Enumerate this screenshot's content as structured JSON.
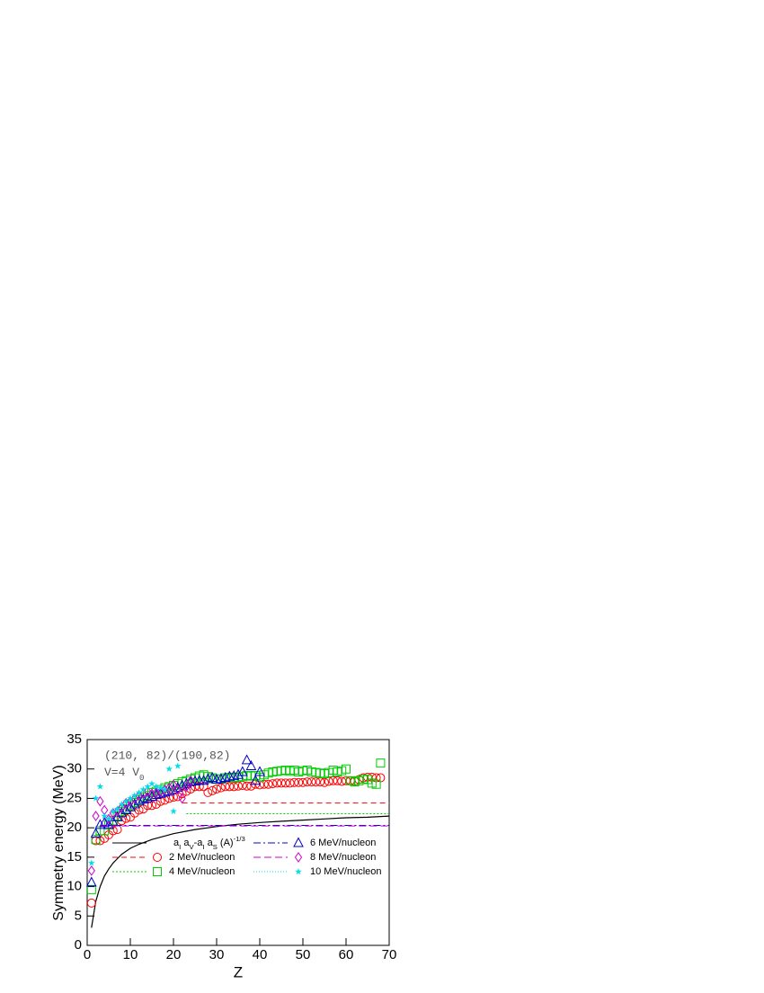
{
  "chart_data": {
    "type": "scatter",
    "xlabel": "Z",
    "ylabel": "Symmetry energy (MeV)",
    "annotations": [
      "(210, 82)/(190,82)",
      "V=4 V_{0}"
    ],
    "xlim": [
      0,
      70
    ],
    "xticks": [
      0,
      10,
      20,
      30,
      40,
      50,
      60,
      70
    ],
    "ylim": [
      0,
      35
    ],
    "yticks": [
      0,
      5,
      10,
      15,
      20,
      25,
      30,
      35
    ],
    "series": [
      {
        "name": "a_{I} a_{V}-a_{I} a_{S} (A)^{-1/3}",
        "color": "#000000",
        "marker": "none",
        "dash": "none",
        "x": [
          1,
          2,
          3,
          4,
          5,
          6,
          8,
          10,
          12,
          15,
          20,
          25,
          30,
          35,
          40,
          45,
          50,
          55,
          60,
          65,
          70
        ],
        "values": [
          3,
          7.5,
          10,
          11.8,
          13,
          14,
          15.5,
          16.5,
          17.2,
          18,
          19,
          19.7,
          20.2,
          20.6,
          20.9,
          21.1,
          21.3,
          21.5,
          21.7,
          21.8,
          22
        ]
      },
      {
        "name": "2 MeV/nucleon",
        "color": "#ff0000",
        "marker": "circle",
        "dash": "6,4",
        "level": 24.2,
        "level_from": 22,
        "x": [
          1,
          2,
          3,
          4,
          5,
          6,
          7,
          8,
          9,
          10,
          11,
          12,
          13,
          14,
          15,
          16,
          17,
          18,
          19,
          20,
          21,
          22,
          23,
          24,
          25,
          26,
          27,
          28,
          29,
          30,
          31,
          32,
          33,
          34,
          35,
          36,
          37,
          38,
          39,
          40,
          41,
          42,
          43,
          44,
          45,
          46,
          47,
          48,
          49,
          50,
          51,
          52,
          53,
          54,
          55,
          56,
          57,
          58,
          59,
          60,
          61,
          62,
          63,
          64,
          65,
          66,
          67,
          68
        ],
        "values": [
          7.2,
          17.8,
          17.8,
          18.2,
          18.8,
          19.5,
          19.7,
          21.2,
          21.6,
          21.8,
          22.5,
          23,
          23.2,
          23.8,
          23.8,
          24,
          24.5,
          24.7,
          25,
          25.2,
          25.3,
          25.8,
          26.2,
          26.6,
          27,
          27,
          27,
          26,
          26.3,
          26.6,
          26.8,
          27,
          27,
          27,
          27.1,
          27.2,
          27.1,
          27.1,
          27.4,
          27.3,
          27.4,
          27.4,
          27.5,
          27.6,
          27.6,
          27.6,
          27.6,
          27.7,
          27.7,
          27.7,
          27.8,
          27.8,
          27.8,
          27.8,
          27.7,
          27.9,
          28,
          28,
          27.9,
          28,
          28,
          27.9,
          28.2,
          28.5,
          28.6,
          28.6,
          28.5,
          28.5
        ]
      },
      {
        "name": "4 MeV/nucleon",
        "color": "#00cc00",
        "marker": "square",
        "dash": "2,2",
        "level": 22.4,
        "level_from": 23,
        "x": [
          1,
          2,
          3,
          4,
          5,
          6,
          7,
          8,
          9,
          10,
          11,
          12,
          13,
          14,
          15,
          16,
          17,
          18,
          19,
          20,
          21,
          22,
          23,
          24,
          25,
          26,
          27,
          28,
          29,
          30,
          31,
          32,
          33,
          34,
          35,
          36,
          37,
          38,
          39,
          40,
          41,
          42,
          43,
          44,
          45,
          46,
          47,
          48,
          49,
          50,
          51,
          52,
          53,
          54,
          55,
          56,
          57,
          58,
          59,
          60,
          61,
          62,
          63,
          64,
          65,
          66,
          67,
          68
        ],
        "values": [
          9.5,
          18,
          19.5,
          19.5,
          20.5,
          21.2,
          22,
          22.8,
          23.2,
          23.8,
          24.3,
          24.8,
          25.2,
          25.5,
          26,
          26.2,
          26.5,
          26.8,
          27,
          27.2,
          27.5,
          27.8,
          28,
          28.3,
          28.5,
          28.8,
          29,
          28.7,
          28.5,
          28.3,
          28.3,
          28.5,
          28.6,
          28.5,
          28.6,
          28.7,
          28.9,
          28.8,
          28.9,
          28.6,
          29,
          29.3,
          29.5,
          29.6,
          29.7,
          29.8,
          29.6,
          29.8,
          29.5,
          29.7,
          29.8,
          29.5,
          29.4,
          29.3,
          29.2,
          29.4,
          29.8,
          29.5,
          29.7,
          30,
          28,
          27.8,
          28,
          28.3,
          28.2,
          27.6,
          27.4,
          31
        ]
      },
      {
        "name": "6 MeV/nucleon",
        "color": "#0000cc",
        "marker": "triangle",
        "dash": "8,3,2,3",
        "level": 20.4,
        "level_from": 3,
        "x": [
          1,
          2,
          3,
          4,
          5,
          6,
          7,
          8,
          9,
          10,
          11,
          12,
          13,
          14,
          15,
          16,
          17,
          18,
          19,
          20,
          21,
          22,
          23,
          24,
          25,
          26,
          27,
          28,
          29,
          30,
          31,
          32,
          33,
          34,
          35,
          36,
          37,
          38,
          39,
          40
        ],
        "values": [
          10.7,
          19,
          20.5,
          20.8,
          20.5,
          21,
          21.8,
          22.5,
          23,
          23.5,
          24,
          24.5,
          24.8,
          25,
          25.3,
          25.6,
          25.8,
          26,
          26.2,
          26.5,
          26.8,
          27.2,
          27.5,
          27.8,
          27.9,
          28,
          28,
          28.3,
          28.5,
          28.2,
          28.3,
          28.5,
          28.7,
          28.8,
          29,
          29.5,
          31.5,
          30.5,
          28,
          29.5
        ]
      },
      {
        "name": "8 MeV/nucleon",
        "color": "#cc00cc",
        "marker": "diamond",
        "dash": "8,4",
        "level": 20.3,
        "level_from": 3,
        "x": [
          1,
          2,
          3,
          4,
          5,
          6,
          7,
          8,
          9,
          10,
          11,
          12,
          13,
          14,
          15,
          16,
          17,
          18,
          19,
          20,
          21,
          22,
          23,
          24
        ],
        "values": [
          12.7,
          22,
          24.5,
          23,
          21.5,
          22.5,
          22.8,
          23.5,
          24.2,
          24.5,
          25,
          25.5,
          25.8,
          26.2,
          25.8,
          26,
          26.2,
          26.5,
          26.8,
          27.3,
          26.5,
          25,
          27,
          28
        ]
      },
      {
        "name": "10 MeV/nucleon",
        "color": "#00dde8",
        "marker": "star",
        "dash": "1,2",
        "x": [
          1,
          2,
          3,
          4,
          5,
          6,
          7,
          8,
          9,
          10,
          11,
          12,
          13,
          14,
          15,
          16,
          17,
          18,
          19,
          20,
          21
        ],
        "values": [
          14,
          25,
          27,
          22,
          21.5,
          22.8,
          23.2,
          24,
          24.5,
          25,
          25.5,
          26,
          26.5,
          27,
          27.5,
          27,
          26.8,
          26.5,
          30,
          22.8,
          30.5
        ]
      }
    ]
  }
}
